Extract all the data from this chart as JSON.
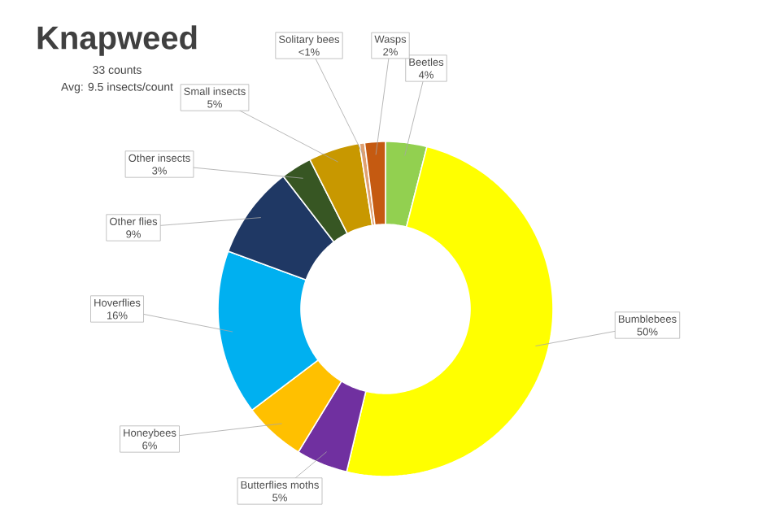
{
  "chart_data": {
    "type": "donut",
    "title": "Knapweed",
    "subtitle": "33 counts",
    "annotations": [
      "Avg: 9.5 insects/count"
    ],
    "categories": [
      "Beetles",
      "Bumblebees",
      "Butterflies moths",
      "Honeybees",
      "Hoverflies",
      "Other flies",
      "Other insects",
      "Small insects",
      "Solitary bees",
      "Wasps"
    ],
    "values": [
      4,
      50,
      5,
      6,
      16,
      9,
      3,
      5,
      0.5,
      2
    ],
    "value_labels": [
      "4%",
      "50%",
      "5%",
      "6%",
      "16%",
      "9%",
      "3%",
      "5%",
      "<1%",
      "2%"
    ],
    "colors": [
      "#92d050",
      "#ffff00",
      "#7030a0",
      "#ffc000",
      "#00b0f0",
      "#1f3864",
      "#375623",
      "#c89800",
      "#e0a070",
      "#c55a11"
    ]
  }
}
